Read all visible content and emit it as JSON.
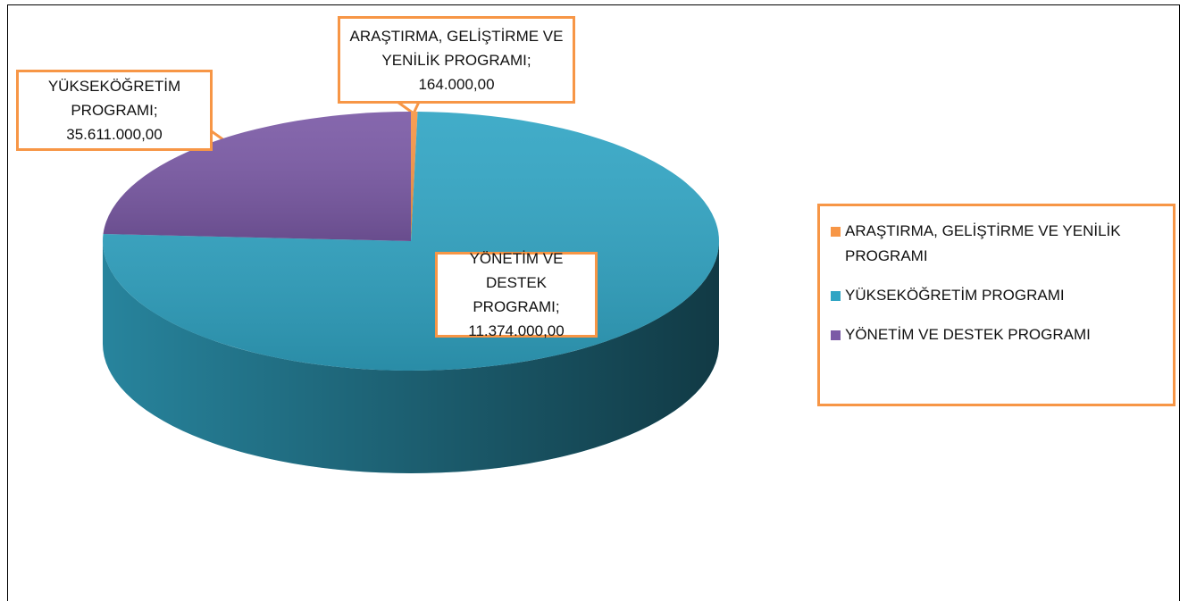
{
  "chart_data": {
    "type": "pie",
    "categories": [
      "ARAŞTIRMA, GELİŞTİRME VE YENİLİK PROGRAMI",
      "YÜKSEKÖĞRETİM PROGRAMI",
      "YÖNETİM VE DESTEK PROGRAMI"
    ],
    "values": [
      164000,
      35611000,
      11374000
    ],
    "value_labels": [
      "164.000,00",
      "35.611.000,00",
      "11.374.000,00"
    ],
    "data_label_separator": ";",
    "colors": [
      "#f79646",
      "#31a5c4",
      "#7b5aa6"
    ],
    "legend": "right"
  }
}
